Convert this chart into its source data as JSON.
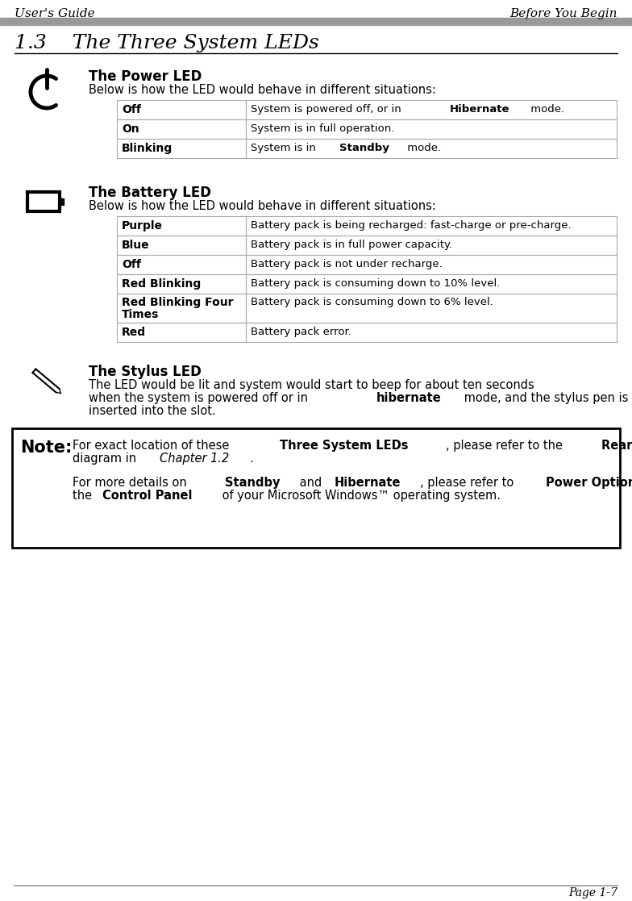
{
  "header_left": "User's Guide",
  "header_right": "Before You Begin",
  "section_title": "1.3    The Three System LEDs",
  "power_led_title": "The Power LED",
  "power_led_subtitle": "Below is how the LED would behave in different situations:",
  "battery_led_title": "The Battery LED",
  "battery_led_subtitle": "Below is how the LED would behave in different situations:",
  "stylus_led_title": "The Stylus LED",
  "footer_text": "Page 1-7",
  "bg_color": "#ffffff",
  "table_border_color": "#aaaaaa",
  "header_bar_color": "#999999"
}
